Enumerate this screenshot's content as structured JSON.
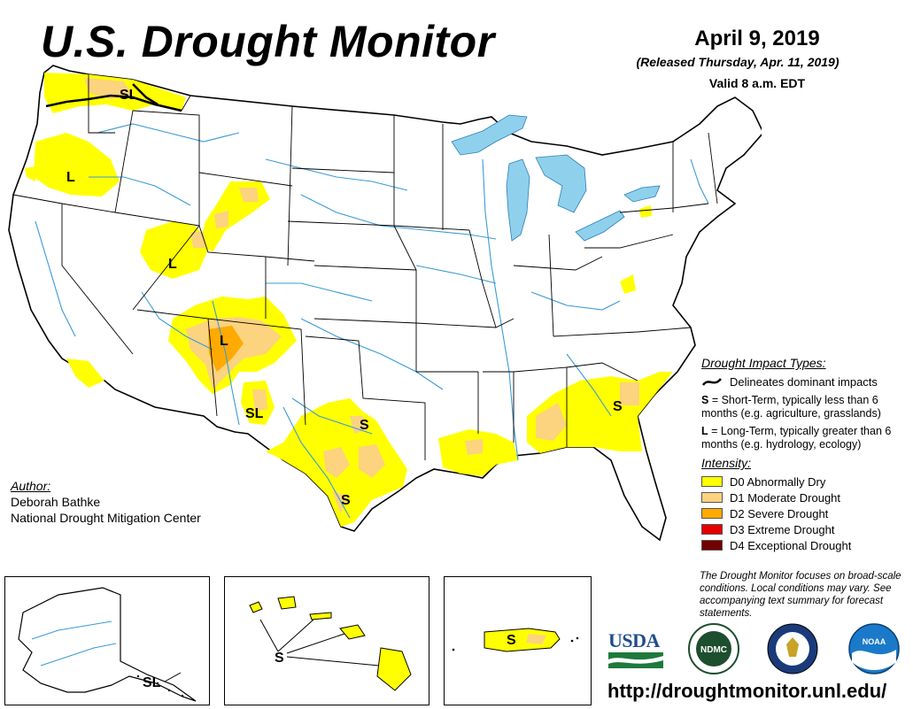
{
  "header": {
    "title": "U.S. Drought Monitor",
    "date": "April 9, 2019",
    "released": "(Released Thursday, Apr. 11, 2019)",
    "valid": "Valid 8 a.m. EDT"
  },
  "map_labels": {
    "northwest_sl": "SL",
    "oregon_l": "L",
    "utah_l": "L",
    "four_corners_l": "L",
    "new_mexico_sl": "SL",
    "texas_north_s": "S",
    "texas_south_s": "S",
    "georgia_s": "S",
    "alaska_sl": "SL",
    "hawaii_s": "S",
    "puerto_rico_s": "S"
  },
  "legend": {
    "impact_heading": "Drought Impact Types:",
    "delineates": "Delineates dominant impacts",
    "short_term_key": "S",
    "short_term_text": " = Short-Term, typically less than 6 months (e.g. agriculture, grasslands)",
    "long_term_key": "L",
    "long_term_text": " = Long-Term, typically greater than 6 months (e.g. hydrology, ecology)",
    "intensity_heading": "Intensity:",
    "intensity": [
      {
        "label": "D0 Abnormally Dry",
        "color": "#ffff00"
      },
      {
        "label": "D1 Moderate Drought",
        "color": "#fcd37f"
      },
      {
        "label": "D2 Severe Drought",
        "color": "#ffaa00"
      },
      {
        "label": "D3 Extreme Drought",
        "color": "#e60000"
      },
      {
        "label": "D4 Exceptional Drought",
        "color": "#730000"
      }
    ]
  },
  "author": {
    "heading": "Author:",
    "name": "Deborah Bathke",
    "org": "National Drought Mitigation Center"
  },
  "note": "The Drought Monitor focuses on broad-scale conditions. Local conditions may vary. See accompanying text summary for forecast statements.",
  "logos": {
    "usda": "USDA",
    "ndmc": "NDMC",
    "noaa": "NOAA"
  },
  "url": "http://droughtmonitor.unl.edu/",
  "colors": {
    "d0": "#ffff00",
    "d1": "#fcd37f",
    "d2": "#ffaa00",
    "water": "#8fd0ec",
    "river": "#3a9bd6"
  }
}
